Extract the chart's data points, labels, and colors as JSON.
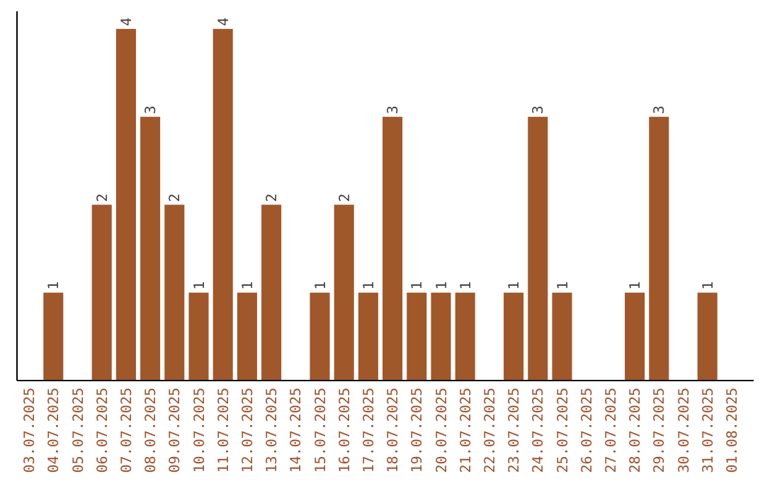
{
  "chart_data": {
    "type": "bar",
    "categories": [
      "03.07.2025",
      "04.07.2025",
      "05.07.2025",
      "06.07.2025",
      "07.07.2025",
      "08.07.2025",
      "09.07.2025",
      "10.07.2025",
      "11.07.2025",
      "12.07.2025",
      "13.07.2025",
      "14.07.2025",
      "15.07.2025",
      "16.07.2025",
      "17.07.2025",
      "18.07.2025",
      "19.07.2025",
      "20.07.2025",
      "21.07.2025",
      "22.07.2025",
      "23.07.2025",
      "24.07.2025",
      "25.07.2025",
      "26.07.2025",
      "27.07.2025",
      "28.07.2025",
      "29.07.2025",
      "30.07.2025",
      "31.07.2025",
      "01.08.2025"
    ],
    "values": [
      0,
      1,
      0,
      2,
      4,
      3,
      2,
      1,
      4,
      1,
      2,
      0,
      1,
      2,
      1,
      3,
      1,
      1,
      1,
      0,
      1,
      3,
      1,
      0,
      0,
      1,
      3,
      0,
      1,
      0
    ],
    "value_labels": [
      null,
      "1",
      null,
      "2",
      "4",
      "3",
      "2",
      "1",
      "4",
      "1",
      "2",
      null,
      "1",
      "2",
      "1",
      "3",
      "1",
      "1",
      "1",
      null,
      "1",
      "3",
      "1",
      null,
      null,
      "1",
      "3",
      null,
      "1",
      null
    ],
    "color": "#a0572a"
  }
}
